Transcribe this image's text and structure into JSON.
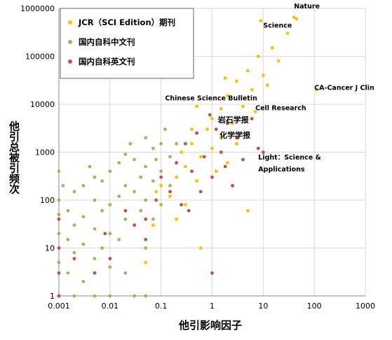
{
  "chart_data": {
    "type": "scatter",
    "xlabel": "他引影响因子",
    "ylabel": "他引总被引频次",
    "x_scale": "log",
    "y_scale": "log",
    "xlim": [
      0.001,
      1000
    ],
    "ylim": [
      1,
      1000000
    ],
    "x_ticks": [
      "0.001",
      "0.01",
      "0.1",
      "1",
      "10",
      "100",
      "1000"
    ],
    "y_ticks": [
      "1",
      "10",
      "100",
      "1000",
      "10000",
      "100000",
      "1000000"
    ],
    "grid": true,
    "legend_position": "top-left",
    "series": [
      {
        "name": "JCR（SCI Edition）期刊",
        "color": "#FFC000",
        "points": [
          [
            0.1,
            200
          ],
          [
            0.15,
            120
          ],
          [
            0.2,
            300
          ],
          [
            0.3,
            80
          ],
          [
            0.3,
            500
          ],
          [
            0.4,
            1500
          ],
          [
            0.5,
            250
          ],
          [
            0.6,
            800
          ],
          [
            0.8,
            3000
          ],
          [
            1.0,
            1200
          ],
          [
            1.0,
            5000
          ],
          [
            1.2,
            400
          ],
          [
            1.5,
            8000
          ],
          [
            1.5,
            2000
          ],
          [
            2.0,
            15000
          ],
          [
            2.0,
            600
          ],
          [
            2.5,
            4000
          ],
          [
            3.0,
            30000
          ],
          [
            3.0,
            1500
          ],
          [
            4.0,
            9000
          ],
          [
            5.0,
            50000
          ],
          [
            5.0,
            2500
          ],
          [
            6.0,
            20000
          ],
          [
            8.0,
            100000
          ],
          [
            10.0,
            40000
          ],
          [
            15.0,
            150000
          ],
          [
            20.0,
            80000
          ],
          [
            30.0,
            300000
          ],
          [
            0.05,
            5
          ],
          [
            0.07,
            30
          ],
          [
            0.2,
            40
          ],
          [
            0.25,
            1000
          ],
          [
            0.6,
            10
          ],
          [
            5.0,
            60
          ],
          [
            0.5,
            9000
          ],
          [
            0.08,
            150
          ],
          [
            7.0,
            7000
          ],
          [
            12.0,
            25000
          ],
          [
            0.4,
            3000
          ],
          [
            1.8,
            35000
          ],
          [
            45.0,
            600000
          ],
          [
            40.0,
            650000
          ],
          [
            110.0,
            20000
          ],
          [
            9.0,
            550000
          ]
        ]
      },
      {
        "name": "国内自科中文刊",
        "color": "#9BBB59",
        "points": [
          [
            0.001,
            1
          ],
          [
            0.001,
            5
          ],
          [
            0.001,
            20
          ],
          [
            0.001,
            50
          ],
          [
            0.001,
            100
          ],
          [
            0.001,
            400
          ],
          [
            0.0015,
            3
          ],
          [
            0.0015,
            15
          ],
          [
            0.0015,
            60
          ],
          [
            0.002,
            1
          ],
          [
            0.002,
            8
          ],
          [
            0.002,
            30
          ],
          [
            0.002,
            150
          ],
          [
            0.003,
            2
          ],
          [
            0.003,
            12
          ],
          [
            0.003,
            45
          ],
          [
            0.003,
            200
          ],
          [
            0.005,
            1
          ],
          [
            0.005,
            6
          ],
          [
            0.005,
            25
          ],
          [
            0.005,
            100
          ],
          [
            0.005,
            300
          ],
          [
            0.007,
            10
          ],
          [
            0.007,
            60
          ],
          [
            0.007,
            250
          ],
          [
            0.01,
            1
          ],
          [
            0.01,
            4
          ],
          [
            0.01,
            20
          ],
          [
            0.01,
            80
          ],
          [
            0.01,
            400
          ],
          [
            0.015,
            15
          ],
          [
            0.015,
            120
          ],
          [
            0.015,
            600
          ],
          [
            0.02,
            3
          ],
          [
            0.02,
            40
          ],
          [
            0.02,
            200
          ],
          [
            0.02,
            900
          ],
          [
            0.03,
            30
          ],
          [
            0.03,
            150
          ],
          [
            0.03,
            700
          ],
          [
            0.04,
            60
          ],
          [
            0.04,
            300
          ],
          [
            0.05,
            1
          ],
          [
            0.05,
            10
          ],
          [
            0.05,
            100
          ],
          [
            0.05,
            500
          ],
          [
            0.05,
            2000
          ],
          [
            0.07,
            40
          ],
          [
            0.07,
            250
          ],
          [
            0.07,
            1200
          ],
          [
            0.1,
            80
          ],
          [
            0.1,
            400
          ],
          [
            0.1,
            1500
          ],
          [
            0.12,
            3000
          ],
          [
            0.15,
            200
          ],
          [
            0.15,
            800
          ],
          [
            0.2,
            1500
          ],
          [
            0.08,
            700
          ],
          [
            0.03,
            1
          ],
          [
            0.0012,
            200
          ],
          [
            0.004,
            500
          ],
          [
            0.025,
            1500
          ]
        ]
      },
      {
        "name": "国内自科英文刊",
        "color": "#C0504D",
        "points": [
          [
            0.001,
            1
          ],
          [
            0.001,
            3
          ],
          [
            0.001,
            10
          ],
          [
            0.001,
            40
          ],
          [
            0.002,
            6
          ],
          [
            0.005,
            3
          ],
          [
            0.008,
            20
          ],
          [
            0.01,
            6
          ],
          [
            0.02,
            60
          ],
          [
            0.03,
            30
          ],
          [
            0.05,
            40
          ],
          [
            0.05,
            15
          ],
          [
            0.08,
            100
          ],
          [
            0.1,
            300
          ],
          [
            0.15,
            150
          ],
          [
            0.2,
            600
          ],
          [
            0.25,
            80
          ],
          [
            0.3,
            1500
          ],
          [
            0.4,
            400
          ],
          [
            0.5,
            2500
          ],
          [
            0.6,
            150
          ],
          [
            0.7,
            800
          ],
          [
            0.9,
            6000
          ],
          [
            1.0,
            300
          ],
          [
            1.2,
            3000
          ],
          [
            1.5,
            1000
          ],
          [
            1.8,
            500
          ],
          [
            2.0,
            4000
          ],
          [
            2.5,
            200
          ],
          [
            3.0,
            2000
          ],
          [
            4.0,
            700
          ],
          [
            1.0,
            3
          ],
          [
            6.0,
            5000
          ],
          [
            8.0,
            1200
          ],
          [
            10.0,
            1000
          ],
          [
            0.35,
            60
          ]
        ]
      }
    ],
    "annotations": [
      {
        "text": "Nature",
        "x": 40,
        "y": 1000000
      },
      {
        "text": "Science",
        "x": 10,
        "y": 400000
      },
      {
        "text": "CA-Cancer J Clin",
        "x": 100,
        "y": 20000
      },
      {
        "text": "Chinese Science Bulletin",
        "x": 0.12,
        "y": 12000
      },
      {
        "text": "Cell Research",
        "x": 7,
        "y": 7500
      },
      {
        "text": "岩石学报",
        "x": 1.3,
        "y": 4200
      },
      {
        "text": "化学学报",
        "x": 1.4,
        "y": 2000
      },
      {
        "text": "Light：Science &",
        "x": 8,
        "y": 700
      },
      {
        "text": "Applications",
        "x": 8,
        "y": 400
      }
    ]
  }
}
